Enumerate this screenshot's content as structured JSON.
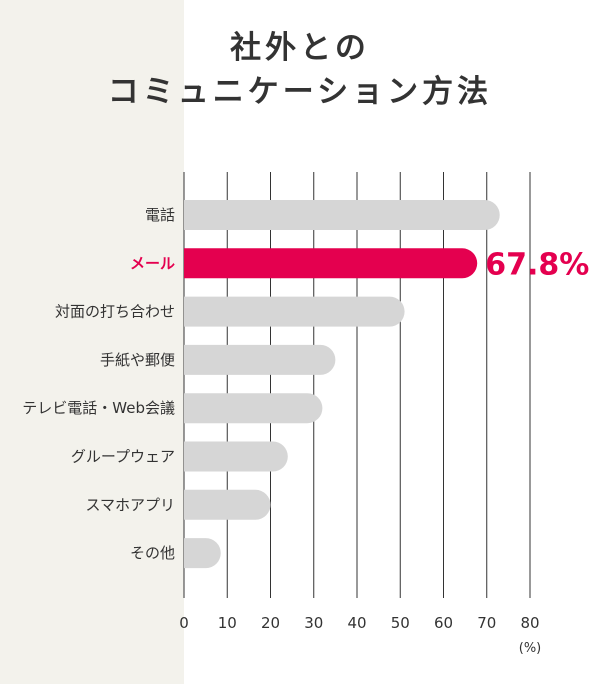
{
  "title": {
    "line1": "社外との",
    "line2": "コミュニケーション方法"
  },
  "colors": {
    "bar": "#d6d6d6",
    "highlight": "#e4004f",
    "grid": "#333333",
    "text": "#333333",
    "panel": "#f3f2ec"
  },
  "chart_data": {
    "type": "bar",
    "orientation": "horizontal",
    "categories": [
      "電話",
      "メール",
      "対面の打ち合わせ",
      "手紙や郵便",
      "テレビ電話・Web会議",
      "グループウェア",
      "スマホアプリ",
      "その他"
    ],
    "values": [
      73,
      67.8,
      51,
      35,
      32,
      24,
      20,
      8.5
    ],
    "highlight_index": 1,
    "highlight_label": "67.8%",
    "xlim": [
      0,
      80
    ],
    "xticks": [
      "0",
      "10",
      "20",
      "30",
      "40",
      "50",
      "60",
      "70",
      "80"
    ],
    "unit": "(%)",
    "grid": true
  }
}
